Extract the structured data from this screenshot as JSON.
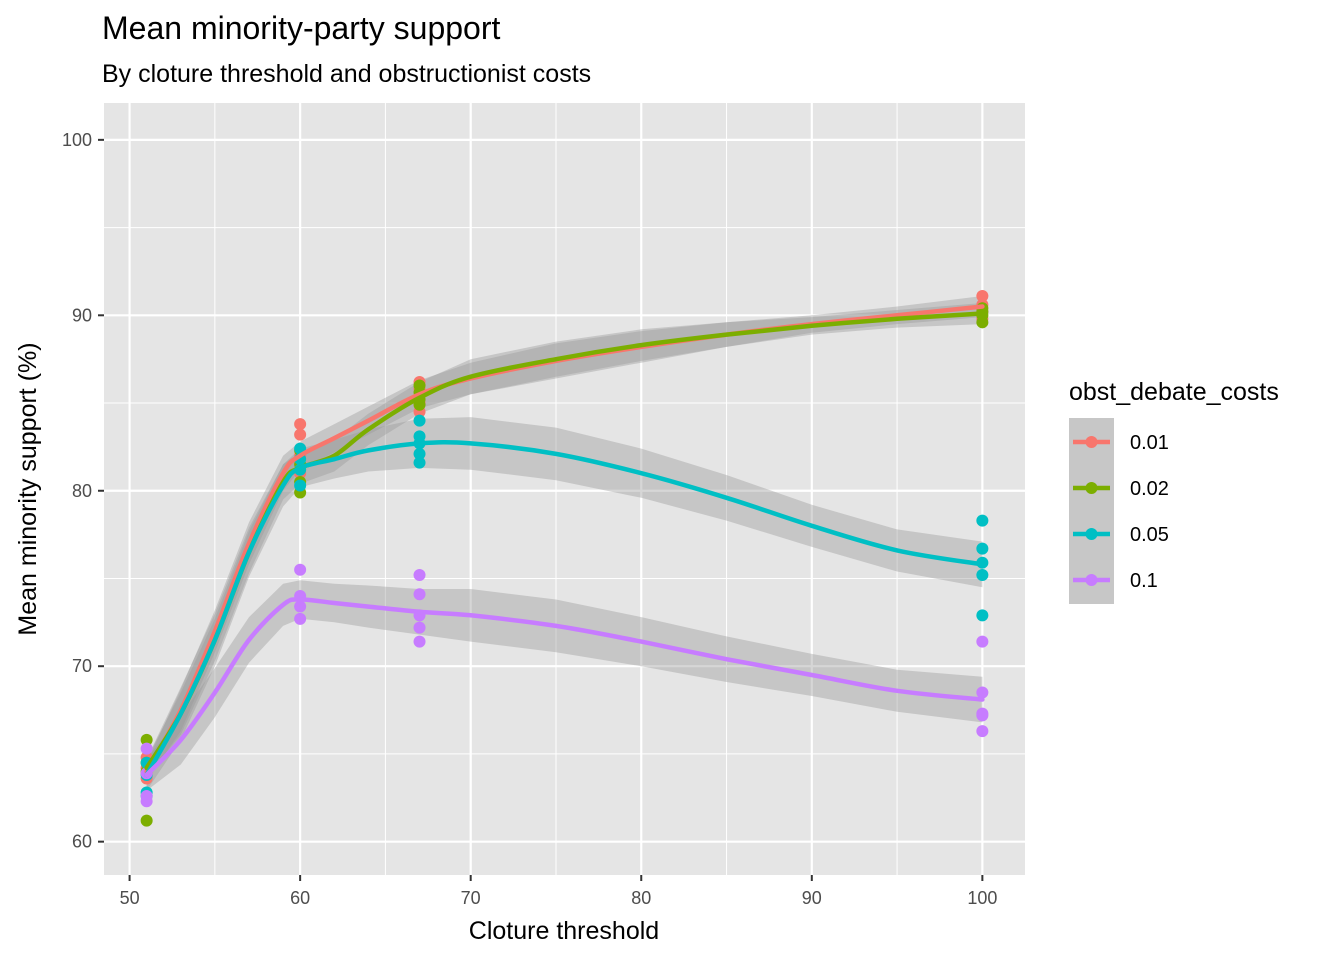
{
  "chart_data": {
    "type": "scatter",
    "title": "Mean minority-party support",
    "subtitle": "By cloture threshold and obstructionist costs",
    "xlabel": "Cloture threshold",
    "ylabel": "Mean minority support (%)",
    "xlim": [
      48.5,
      102.5
    ],
    "ylim": [
      58.1,
      102.1
    ],
    "x_ticks": [
      50,
      60,
      70,
      80,
      90,
      100
    ],
    "y_ticks": [
      60,
      70,
      80,
      90,
      100
    ],
    "grid": true,
    "legend_position": "right",
    "legend_title": "obst_debate_costs",
    "colors": {
      "panel_bg": "#e5e5e5",
      "grid": "#ffffff",
      "ribbon": "#999999"
    },
    "series": [
      {
        "name": "0.01",
        "color": "#f8766d",
        "points": [
          [
            51,
            64.2
          ],
          [
            51,
            64.8
          ],
          [
            51,
            63.6
          ],
          [
            51,
            63.9
          ],
          [
            60,
            83.8
          ],
          [
            60,
            83.2
          ],
          [
            60,
            82.0
          ],
          [
            60,
            81.0
          ],
          [
            67,
            86.2
          ],
          [
            67,
            85.8
          ],
          [
            67,
            85.0
          ],
          [
            67,
            84.5
          ],
          [
            100,
            91.1
          ],
          [
            100,
            90.6
          ],
          [
            100,
            90.2
          ],
          [
            100,
            89.8
          ]
        ],
        "smooth": [
          [
            51,
            64.0
          ],
          [
            53,
            67.5
          ],
          [
            55,
            72.0
          ],
          [
            57,
            77.0
          ],
          [
            59,
            81.0
          ],
          [
            60,
            82.0
          ],
          [
            62,
            83.0
          ],
          [
            64,
            84.0
          ],
          [
            67,
            85.5
          ],
          [
            70,
            86.4
          ],
          [
            75,
            87.4
          ],
          [
            80,
            88.2
          ],
          [
            85,
            88.9
          ],
          [
            90,
            89.5
          ],
          [
            95,
            90.0
          ],
          [
            100,
            90.5
          ]
        ],
        "ribbon": [
          0.5,
          1.2,
          1.2,
          1.2,
          1.0,
          0.8,
          0.8,
          0.8,
          0.8,
          0.9,
          1.0,
          0.9,
          0.7,
          0.5,
          0.5,
          0.6
        ]
      },
      {
        "name": "0.02",
        "color": "#7cae00",
        "points": [
          [
            51,
            65.8
          ],
          [
            51,
            64.5
          ],
          [
            51,
            61.2
          ],
          [
            51,
            64.0
          ],
          [
            60,
            79.9
          ],
          [
            60,
            82.3
          ],
          [
            60,
            81.5
          ],
          [
            60,
            80.5
          ],
          [
            67,
            86.0
          ],
          [
            67,
            85.6
          ],
          [
            67,
            85.2
          ],
          [
            67,
            84.9
          ],
          [
            100,
            90.4
          ],
          [
            100,
            90.0
          ],
          [
            100,
            89.6
          ],
          [
            100,
            90.2
          ]
        ],
        "smooth": [
          [
            51,
            64.2
          ],
          [
            53,
            67.3
          ],
          [
            55,
            71.5
          ],
          [
            57,
            76.5
          ],
          [
            59,
            80.5
          ],
          [
            60,
            81.3
          ],
          [
            62,
            82.0
          ],
          [
            64,
            83.5
          ],
          [
            67,
            85.3
          ],
          [
            70,
            86.5
          ],
          [
            75,
            87.5
          ],
          [
            80,
            88.3
          ],
          [
            85,
            88.9
          ],
          [
            90,
            89.4
          ],
          [
            95,
            89.8
          ],
          [
            100,
            90.1
          ]
        ],
        "ribbon": [
          0.5,
          1.2,
          1.2,
          1.2,
          1.0,
          0.9,
          0.9,
          0.9,
          0.9,
          1.0,
          1.0,
          0.9,
          0.7,
          0.5,
          0.5,
          0.6
        ]
      },
      {
        "name": "0.05",
        "color": "#00bfc4",
        "points": [
          [
            51,
            62.8
          ],
          [
            51,
            62.6
          ],
          [
            51,
            64.5
          ],
          [
            51,
            63.8
          ],
          [
            60,
            80.3
          ],
          [
            60,
            81.2
          ],
          [
            60,
            82.4
          ],
          [
            60,
            81.8
          ],
          [
            67,
            84.0
          ],
          [
            67,
            83.1
          ],
          [
            67,
            82.7
          ],
          [
            67,
            82.1
          ],
          [
            67,
            81.6
          ],
          [
            100,
            78.3
          ],
          [
            100,
            76.7
          ],
          [
            100,
            75.9
          ],
          [
            100,
            75.2
          ],
          [
            100,
            72.9
          ]
        ],
        "smooth": [
          [
            51,
            63.8
          ],
          [
            53,
            67.3
          ],
          [
            55,
            71.5
          ],
          [
            57,
            76.5
          ],
          [
            59,
            80.3
          ],
          [
            60,
            81.3
          ],
          [
            62,
            81.8
          ],
          [
            64,
            82.3
          ],
          [
            67,
            82.7
          ],
          [
            70,
            82.7
          ],
          [
            75,
            82.1
          ],
          [
            80,
            81.0
          ],
          [
            85,
            79.6
          ],
          [
            90,
            78.0
          ],
          [
            95,
            76.6
          ],
          [
            100,
            75.8
          ]
        ],
        "ribbon": [
          0.9,
          1.5,
          1.5,
          1.4,
          1.2,
          1.1,
          1.1,
          1.2,
          1.4,
          1.5,
          1.5,
          1.4,
          1.3,
          1.2,
          1.2,
          1.3
        ]
      },
      {
        "name": "0.1",
        "color": "#c77cff",
        "points": [
          [
            51,
            62.3
          ],
          [
            51,
            62.6
          ],
          [
            51,
            65.3
          ],
          [
            51,
            63.9
          ],
          [
            60,
            75.5
          ],
          [
            60,
            74.0
          ],
          [
            60,
            73.4
          ],
          [
            60,
            72.7
          ],
          [
            67,
            75.2
          ],
          [
            67,
            74.1
          ],
          [
            67,
            72.9
          ],
          [
            67,
            72.2
          ],
          [
            67,
            71.4
          ],
          [
            100,
            71.4
          ],
          [
            100,
            68.5
          ],
          [
            100,
            67.3
          ],
          [
            100,
            67.2
          ],
          [
            100,
            66.3
          ]
        ],
        "smooth": [
          [
            51,
            63.8
          ],
          [
            53,
            65.8
          ],
          [
            55,
            68.5
          ],
          [
            57,
            71.5
          ],
          [
            59,
            73.5
          ],
          [
            60,
            73.8
          ],
          [
            62,
            73.6
          ],
          [
            64,
            73.4
          ],
          [
            67,
            73.1
          ],
          [
            70,
            72.9
          ],
          [
            75,
            72.3
          ],
          [
            80,
            71.4
          ],
          [
            85,
            70.4
          ],
          [
            90,
            69.5
          ],
          [
            95,
            68.6
          ],
          [
            100,
            68.1
          ]
        ],
        "ribbon": [
          0.9,
          1.4,
          1.4,
          1.3,
          1.2,
          1.1,
          1.1,
          1.2,
          1.3,
          1.5,
          1.5,
          1.4,
          1.3,
          1.2,
          1.2,
          1.3
        ]
      }
    ]
  }
}
